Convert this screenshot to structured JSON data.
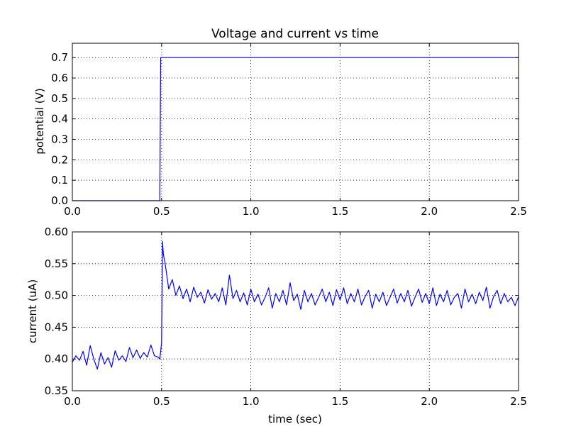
{
  "chart_data": [
    {
      "type": "line",
      "title": "Voltage and current vs time",
      "xlabel": "",
      "ylabel": "potential (V)",
      "xlim": [
        0,
        2.5
      ],
      "ylim": [
        0,
        0.77
      ],
      "xticks": [
        0.0,
        0.5,
        1.0,
        1.5,
        2.0,
        2.5
      ],
      "xtick_labels": [
        "0.0",
        "0.5",
        "1.0",
        "1.5",
        "2.0",
        "2.5"
      ],
      "yticks": [
        0.0,
        0.1,
        0.2,
        0.3,
        0.4,
        0.5,
        0.6,
        0.7
      ],
      "ytick_labels": [
        "0.0",
        "0.1",
        "0.2",
        "0.3",
        "0.4",
        "0.5",
        "0.6",
        "0.7"
      ],
      "grid": true,
      "series_color": "#0000ff",
      "series": [
        {
          "x": [
            0.0,
            0.49,
            0.495,
            0.5,
            0.51,
            2.5
          ],
          "y": [
            0.0,
            0.0,
            0.7,
            0.7,
            0.7,
            0.7
          ]
        }
      ]
    },
    {
      "type": "line",
      "title": "",
      "xlabel": "time (sec)",
      "ylabel": "current (uA)",
      "xlim": [
        0,
        2.5
      ],
      "ylim": [
        0.35,
        0.6
      ],
      "xticks": [
        0.0,
        0.5,
        1.0,
        1.5,
        2.0,
        2.5
      ],
      "xtick_labels": [
        "0.0",
        "0.5",
        "1.0",
        "1.5",
        "2.0",
        "2.5"
      ],
      "yticks": [
        0.35,
        0.4,
        0.45,
        0.5,
        0.55,
        0.6
      ],
      "ytick_labels": [
        "0.35",
        "0.40",
        "0.45",
        "0.50",
        "0.55",
        "0.60"
      ],
      "grid": true,
      "series_color": "#0000ff",
      "series": [
        {
          "x": [
            0.0,
            0.02,
            0.04,
            0.06,
            0.08,
            0.1,
            0.12,
            0.14,
            0.16,
            0.18,
            0.2,
            0.22,
            0.24,
            0.26,
            0.28,
            0.3,
            0.32,
            0.34,
            0.36,
            0.38,
            0.4,
            0.42,
            0.44,
            0.46,
            0.48,
            0.49,
            0.5,
            0.505,
            0.51,
            0.52,
            0.53,
            0.54,
            0.56,
            0.58,
            0.6,
            0.62,
            0.64,
            0.66,
            0.68,
            0.7,
            0.72,
            0.74,
            0.76,
            0.78,
            0.8,
            0.82,
            0.84,
            0.86,
            0.88,
            0.9,
            0.92,
            0.94,
            0.96,
            0.98,
            1.0,
            1.02,
            1.04,
            1.06,
            1.08,
            1.1,
            1.12,
            1.14,
            1.16,
            1.18,
            1.2,
            1.22,
            1.24,
            1.26,
            1.28,
            1.3,
            1.32,
            1.34,
            1.36,
            1.38,
            1.4,
            1.42,
            1.44,
            1.46,
            1.48,
            1.5,
            1.52,
            1.54,
            1.56,
            1.58,
            1.6,
            1.62,
            1.64,
            1.66,
            1.68,
            1.7,
            1.72,
            1.74,
            1.76,
            1.78,
            1.8,
            1.82,
            1.84,
            1.86,
            1.88,
            1.9,
            1.92,
            1.94,
            1.96,
            1.98,
            2.0,
            2.02,
            2.04,
            2.06,
            2.08,
            2.1,
            2.12,
            2.14,
            2.16,
            2.18,
            2.2,
            2.22,
            2.24,
            2.26,
            2.28,
            2.3,
            2.32,
            2.34,
            2.36,
            2.38,
            2.4,
            2.42,
            2.44,
            2.46,
            2.48,
            2.5
          ],
          "y": [
            0.395,
            0.405,
            0.398,
            0.412,
            0.39,
            0.421,
            0.4,
            0.384,
            0.41,
            0.392,
            0.402,
            0.387,
            0.413,
            0.398,
            0.405,
            0.396,
            0.418,
            0.402,
            0.414,
            0.401,
            0.41,
            0.403,
            0.422,
            0.405,
            0.403,
            0.4,
            0.425,
            0.585,
            0.565,
            0.55,
            0.53,
            0.51,
            0.525,
            0.5,
            0.515,
            0.495,
            0.51,
            0.49,
            0.513,
            0.497,
            0.505,
            0.488,
            0.509,
            0.494,
            0.503,
            0.49,
            0.512,
            0.485,
            0.532,
            0.495,
            0.508,
            0.49,
            0.504,
            0.485,
            0.51,
            0.49,
            0.502,
            0.485,
            0.497,
            0.512,
            0.48,
            0.503,
            0.49,
            0.508,
            0.485,
            0.52,
            0.492,
            0.502,
            0.478,
            0.508,
            0.49,
            0.503,
            0.485,
            0.497,
            0.51,
            0.49,
            0.505,
            0.484,
            0.509,
            0.493,
            0.512,
            0.487,
            0.503,
            0.49,
            0.51,
            0.485,
            0.498,
            0.508,
            0.48,
            0.502,
            0.49,
            0.505,
            0.484,
            0.497,
            0.51,
            0.488,
            0.503,
            0.49,
            0.508,
            0.483,
            0.497,
            0.51,
            0.489,
            0.503,
            0.487,
            0.512,
            0.484,
            0.502,
            0.49,
            0.508,
            0.485,
            0.497,
            0.503,
            0.48,
            0.51,
            0.49,
            0.502,
            0.487,
            0.505,
            0.492,
            0.513,
            0.48,
            0.498,
            0.508,
            0.487,
            0.503,
            0.49,
            0.497,
            0.484,
            0.498
          ]
        }
      ]
    }
  ]
}
